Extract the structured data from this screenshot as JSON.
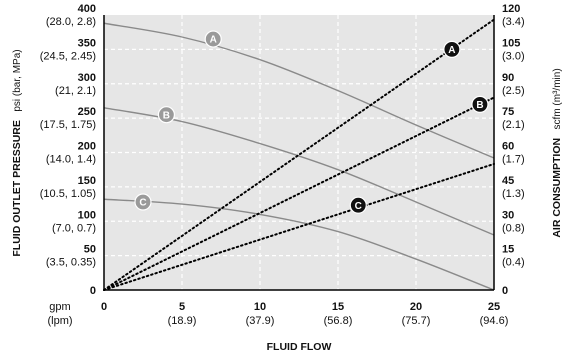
{
  "chart_data": {
    "type": "line",
    "xlabel": "FLUID FLOW",
    "x_unit_main": "gpm",
    "x_unit_sub": "(lpm)",
    "xlim": [
      0,
      25
    ],
    "x_ticks": [
      {
        "value": 0,
        "main": "0",
        "sub": ""
      },
      {
        "value": 5,
        "main": "5",
        "sub": "(18.9)"
      },
      {
        "value": 10,
        "main": "10",
        "sub": "(37.9)"
      },
      {
        "value": 15,
        "main": "15",
        "sub": "(56.8)"
      },
      {
        "value": 20,
        "main": "20",
        "sub": "(75.7)"
      },
      {
        "value": 25,
        "main": "25",
        "sub": "(94.6)"
      }
    ],
    "ylabel_left": "FLUID OUTLET PRESSURE",
    "ylabel_left_unit": "psi (bar, MPa)",
    "ylim_left": [
      0,
      400
    ],
    "y_left_ticks": [
      {
        "value": 0,
        "main": "0",
        "sub": ""
      },
      {
        "value": 50,
        "main": "50",
        "sub": "(3.5, 0.35)"
      },
      {
        "value": 100,
        "main": "100",
        "sub": "(7.0, 0.7)"
      },
      {
        "value": 150,
        "main": "150",
        "sub": "(10.5, 1.05)"
      },
      {
        "value": 200,
        "main": "200",
        "sub": "(14.0, 1.4)"
      },
      {
        "value": 250,
        "main": "250",
        "sub": "(17.5, 1.75)"
      },
      {
        "value": 300,
        "main": "300",
        "sub": "(21, 2.1)"
      },
      {
        "value": 350,
        "main": "350",
        "sub": "(24.5, 2.45)"
      },
      {
        "value": 400,
        "main": "400",
        "sub": "(28.0, 2.8)"
      }
    ],
    "ylabel_right": "AIR CONSUMPTION",
    "ylabel_right_unit": "scfm (m³/min)",
    "ylim_right": [
      0,
      120
    ],
    "y_right_ticks": [
      {
        "value": 0,
        "main": "0",
        "sub": ""
      },
      {
        "value": 15,
        "main": "15",
        "sub": "(0.4)"
      },
      {
        "value": 30,
        "main": "30",
        "sub": "(0.8)"
      },
      {
        "value": 45,
        "main": "45",
        "sub": "(1.3)"
      },
      {
        "value": 60,
        "main": "60",
        "sub": "(1.7)"
      },
      {
        "value": 75,
        "main": "75",
        "sub": "(2.1)"
      },
      {
        "value": 90,
        "main": "90",
        "sub": "(2.5)"
      },
      {
        "value": 105,
        "main": "105",
        "sub": "(3.0)"
      },
      {
        "value": 120,
        "main": "120",
        "sub": "(3.4)"
      }
    ],
    "grid": true,
    "pressure_series": [
      {
        "name": "A",
        "axis": "left",
        "style": "solid",
        "x": [
          0,
          5,
          10,
          15,
          20,
          25
        ],
        "y": [
          388,
          368,
          335,
          290,
          240,
          192
        ],
        "label_at": [
          7,
          365
        ]
      },
      {
        "name": "B",
        "axis": "left",
        "style": "solid",
        "x": [
          0,
          5,
          10,
          15,
          20,
          25
        ],
        "y": [
          265,
          245,
          213,
          175,
          128,
          80
        ],
        "label_at": [
          4,
          255
        ]
      },
      {
        "name": "C",
        "axis": "left",
        "style": "solid",
        "x": [
          0,
          5,
          10,
          15,
          20,
          25
        ],
        "y": [
          132,
          125,
          110,
          85,
          45,
          0
        ],
        "label_at": [
          2.5,
          128
        ]
      }
    ],
    "air_series": [
      {
        "name": "A",
        "axis": "right",
        "style": "dotted",
        "x": [
          0,
          25
        ],
        "y": [
          0,
          118
        ],
        "label_at": [
          22.3,
          105
        ]
      },
      {
        "name": "B",
        "axis": "right",
        "style": "dotted",
        "x": [
          0,
          25
        ],
        "y": [
          0,
          84
        ],
        "label_at": [
          24.1,
          81
        ]
      },
      {
        "name": "C",
        "axis": "right",
        "style": "dotted",
        "x": [
          0,
          25
        ],
        "y": [
          0,
          55
        ],
        "label_at": [
          16.3,
          37
        ]
      }
    ]
  },
  "colors": {
    "plot_background": "#e6e6e6",
    "grid": "#ffffff",
    "pressure_line": "#8a8a8a",
    "air_line": "#000000",
    "pressure_badge": "#9a9a9a",
    "air_badge": "#111111"
  }
}
